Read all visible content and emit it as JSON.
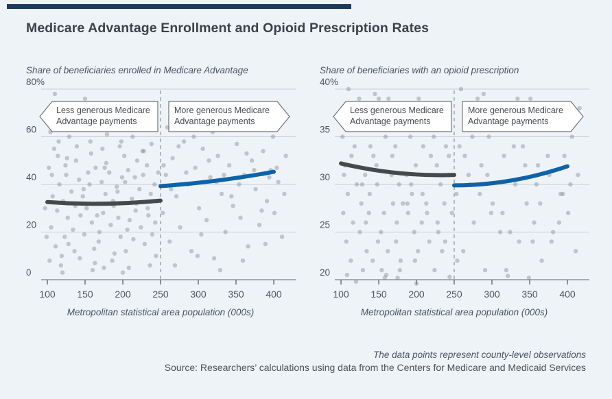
{
  "page": {
    "title": "Medicare Advantage Enrollment and Opioid Prescription Rates",
    "accent_bar_color": "#1c3a5e",
    "background_color": "#eef3f8",
    "footer_note": "The data points represent county-level observations",
    "footer_source": "Source: Researchers’ calculations using data from the Centers for Medicare and Medicaid Services"
  },
  "colors": {
    "dot": "#7e868c",
    "fit_below": "#46494c",
    "fit_above": "#0d63a9",
    "grid": "#c7cdd2",
    "axis": "#8d949a",
    "tick": "#6a7076",
    "dashed": "#97a0a7",
    "box_border": "#6e757b",
    "box_fill": "#ffffff"
  },
  "annotations": {
    "less": {
      "line1": "Less generous Medicare",
      "line2": "Advantage payments"
    },
    "more": {
      "line1": "More generous Medicare",
      "line2": "Advantage payments"
    }
  },
  "chart_data": [
    {
      "type": "scatter",
      "title": "Share of beneficiaries enrolled in Medicare Advantage",
      "xlabel": "Metropolitan statistical area population (000s)",
      "xlim": [
        85,
        430
      ],
      "ylim": [
        0,
        80
      ],
      "xticks": [
        100,
        150,
        200,
        250,
        300,
        350,
        400
      ],
      "ytick_values": [
        80,
        60,
        40,
        20,
        0
      ],
      "ytick_labels": [
        "80%",
        "60",
        "40",
        "20",
        "0"
      ],
      "threshold_x": 250,
      "grid": true,
      "fit_below": {
        "name": "less-generous-fit",
        "points": [
          [
            100,
            32.6
          ],
          [
            175,
            31.9
          ],
          [
            250,
            33.2
          ]
        ]
      },
      "fit_above": {
        "name": "more-generous-fit",
        "points": [
          [
            250,
            39.3
          ],
          [
            325,
            41.6
          ],
          [
            400,
            45.3
          ]
        ]
      },
      "points": [
        [
          103,
          8
        ],
        [
          105,
          22
        ],
        [
          107,
          35
        ],
        [
          102,
          47
        ],
        [
          109,
          55
        ],
        [
          111,
          14
        ],
        [
          113,
          29
        ],
        [
          104,
          62
        ],
        [
          116,
          40
        ],
        [
          118,
          6
        ],
        [
          108,
          70
        ],
        [
          121,
          33
        ],
        [
          123,
          18
        ],
        [
          125,
          44
        ],
        [
          114,
          52
        ],
        [
          127,
          26
        ],
        [
          129,
          60
        ],
        [
          119,
          10
        ],
        [
          132,
          37
        ],
        [
          134,
          21
        ],
        [
          124,
          48
        ],
        [
          137,
          31
        ],
        [
          139,
          56
        ],
        [
          128,
          15
        ],
        [
          142,
          42
        ],
        [
          144,
          27
        ],
        [
          133,
          65
        ],
        [
          147,
          35
        ],
        [
          149,
          19
        ],
        [
          138,
          50
        ],
        [
          152,
          30
        ],
        [
          154,
          45
        ],
        [
          143,
          9
        ],
        [
          157,
          58
        ],
        [
          159,
          24
        ],
        [
          148,
          38
        ],
        [
          162,
          13
        ],
        [
          164,
          47
        ],
        [
          153,
          68
        ],
        [
          167,
          32
        ],
        [
          169,
          20
        ],
        [
          158,
          53
        ],
        [
          172,
          41
        ],
        [
          174,
          28
        ],
        [
          163,
          7
        ],
        [
          177,
          36
        ],
        [
          179,
          61
        ],
        [
          168,
          16
        ],
        [
          182,
          45
        ],
        [
          184,
          23
        ],
        [
          173,
          55
        ],
        [
          187,
          33
        ],
        [
          189,
          11
        ],
        [
          178,
          49
        ],
        [
          192,
          39
        ],
        [
          194,
          26
        ],
        [
          183,
          64
        ],
        [
          197,
          18
        ],
        [
          199,
          43
        ],
        [
          188,
          31
        ],
        [
          202,
          52
        ],
        [
          204,
          12
        ],
        [
          193,
          37
        ],
        [
          207,
          46
        ],
        [
          209,
          25
        ],
        [
          198,
          58
        ],
        [
          212,
          34
        ],
        [
          214,
          17
        ],
        [
          203,
          41
        ],
        [
          217,
          29
        ],
        [
          219,
          50
        ],
        [
          208,
          5
        ],
        [
          222,
          38
        ],
        [
          224,
          22
        ],
        [
          213,
          60
        ],
        [
          227,
          44
        ],
        [
          229,
          15
        ],
        [
          218,
          32
        ],
        [
          232,
          48
        ],
        [
          234,
          27
        ],
        [
          223,
          70
        ],
        [
          237,
          36
        ],
        [
          239,
          19
        ],
        [
          228,
          54
        ],
        [
          242,
          40
        ],
        [
          244,
          10
        ],
        [
          233,
          30
        ],
        [
          247,
          45
        ],
        [
          238,
          57
        ],
        [
          243,
          24
        ],
        [
          110,
          78
        ],
        [
          150,
          76
        ],
        [
          120,
          3
        ],
        [
          160,
          4
        ],
        [
          200,
          3
        ],
        [
          145,
          73
        ],
        [
          175,
          5
        ],
        [
          106,
          44
        ],
        [
          115,
          58
        ],
        [
          126,
          51
        ],
        [
          136,
          12
        ],
        [
          146,
          63
        ],
        [
          156,
          40
        ],
        [
          166,
          27
        ],
        [
          176,
          47
        ],
        [
          186,
          8
        ],
        [
          196,
          56
        ],
        [
          206,
          21
        ],
        [
          216,
          43
        ],
        [
          226,
          54
        ],
        [
          236,
          6
        ],
        [
          246,
          33
        ],
        [
          97,
          30
        ],
        [
          99,
          18
        ],
        [
          253,
          28
        ],
        [
          257,
          44
        ],
        [
          262,
          16
        ],
        [
          266,
          51
        ],
        [
          271,
          35
        ],
        [
          276,
          22
        ],
        [
          281,
          58
        ],
        [
          286,
          40
        ],
        [
          291,
          12
        ],
        [
          296,
          47
        ],
        [
          301,
          30
        ],
        [
          306,
          55
        ],
        [
          311,
          25
        ],
        [
          316,
          43
        ],
        [
          321,
          9
        ],
        [
          326,
          52
        ],
        [
          331,
          36
        ],
        [
          336,
          20
        ],
        [
          341,
          48
        ],
        [
          346,
          31
        ],
        [
          351,
          57
        ],
        [
          356,
          26
        ],
        [
          361,
          44
        ],
        [
          366,
          14
        ],
        [
          371,
          50
        ],
        [
          376,
          38
        ],
        [
          381,
          23
        ],
        [
          386,
          54
        ],
        [
          391,
          33
        ],
        [
          396,
          46
        ],
        [
          401,
          28
        ],
        [
          406,
          41
        ],
        [
          411,
          18
        ],
        [
          416,
          52
        ],
        [
          259,
          64
        ],
        [
          289,
          70
        ],
        [
          319,
          62
        ],
        [
          349,
          68
        ],
        [
          379,
          72
        ],
        [
          399,
          60
        ],
        [
          269,
          6
        ],
        [
          299,
          10
        ],
        [
          329,
          4
        ],
        [
          359,
          8
        ],
        [
          389,
          15
        ],
        [
          264,
          38
        ],
        [
          284,
          45
        ],
        [
          304,
          19
        ],
        [
          324,
          41
        ],
        [
          344,
          35
        ],
        [
          364,
          53
        ],
        [
          384,
          29
        ],
        [
          404,
          47
        ],
        [
          254,
          48
        ],
        [
          274,
          56
        ],
        [
          294,
          60
        ],
        [
          314,
          50
        ],
        [
          334,
          44
        ],
        [
          354,
          40
        ],
        [
          374,
          46
        ],
        [
          394,
          43
        ],
        [
          414,
          36
        ]
      ]
    },
    {
      "type": "scatter",
      "title": "Share of beneficiaries with an opioid prescription",
      "xlabel": "Metropolitan statistical area population (000s)",
      "xlim": [
        85,
        430
      ],
      "ylim": [
        20,
        40
      ],
      "xticks": [
        100,
        150,
        200,
        250,
        300,
        350,
        400
      ],
      "ytick_values": [
        40,
        35,
        30,
        25,
        20
      ],
      "ytick_labels": [
        "40%",
        "35",
        "30",
        "25",
        "20"
      ],
      "threshold_x": 250,
      "grid": true,
      "fit_below": {
        "name": "less-generous-fit",
        "points": [
          [
            100,
            32.2
          ],
          [
            175,
            31.2
          ],
          [
            250,
            31.0
          ]
        ]
      },
      "fit_above": {
        "name": "more-generous-fit",
        "points": [
          [
            250,
            29.9
          ],
          [
            325,
            30.4
          ],
          [
            400,
            31.9
          ]
        ]
      },
      "points": [
        [
          103,
          27
        ],
        [
          105,
          32
        ],
        [
          107,
          24
        ],
        [
          102,
          35
        ],
        [
          109,
          29
        ],
        [
          111,
          38
        ],
        [
          113,
          22
        ],
        [
          104,
          31
        ],
        [
          116,
          26
        ],
        [
          118,
          34
        ],
        [
          108,
          20.5
        ],
        [
          121,
          30
        ],
        [
          123,
          37
        ],
        [
          125,
          25
        ],
        [
          114,
          33
        ],
        [
          127,
          28
        ],
        [
          129,
          21
        ],
        [
          119,
          36
        ],
        [
          132,
          31
        ],
        [
          134,
          23
        ],
        [
          124,
          39
        ],
        [
          137,
          27
        ],
        [
          139,
          34
        ],
        [
          128,
          30
        ],
        [
          142,
          22
        ],
        [
          144,
          36
        ],
        [
          133,
          26
        ],
        [
          147,
          32
        ],
        [
          149,
          24
        ],
        [
          138,
          29
        ],
        [
          152,
          38
        ],
        [
          154,
          21
        ],
        [
          143,
          33
        ],
        [
          157,
          27
        ],
        [
          159,
          35
        ],
        [
          148,
          30
        ],
        [
          162,
          23
        ],
        [
          164,
          37
        ],
        [
          153,
          25
        ],
        [
          167,
          31
        ],
        [
          169,
          28
        ],
        [
          158,
          20.2
        ],
        [
          172,
          34
        ],
        [
          174,
          26
        ],
        [
          163,
          39
        ],
        [
          177,
          30
        ],
        [
          179,
          22
        ],
        [
          168,
          33
        ],
        [
          182,
          28
        ],
        [
          184,
          36
        ],
        [
          173,
          24
        ],
        [
          187,
          31
        ],
        [
          189,
          27
        ],
        [
          178,
          21
        ],
        [
          192,
          35
        ],
        [
          194,
          29
        ],
        [
          183,
          38
        ],
        [
          197,
          25
        ],
        [
          199,
          32
        ],
        [
          188,
          28
        ],
        [
          202,
          23
        ],
        [
          204,
          36
        ],
        [
          193,
          30
        ],
        [
          207,
          26
        ],
        [
          209,
          34
        ],
        [
          198,
          22
        ],
        [
          212,
          31
        ],
        [
          214,
          27
        ],
        [
          203,
          39
        ],
        [
          217,
          24
        ],
        [
          219,
          33
        ],
        [
          208,
          29
        ],
        [
          222,
          36
        ],
        [
          224,
          21
        ],
        [
          213,
          28
        ],
        [
          227,
          32
        ],
        [
          229,
          25
        ],
        [
          218,
          37
        ],
        [
          232,
          30
        ],
        [
          234,
          23
        ],
        [
          223,
          35
        ],
        [
          237,
          28
        ],
        [
          239,
          34
        ],
        [
          228,
          26
        ],
        [
          242,
          31
        ],
        [
          244,
          20.3
        ],
        [
          233,
          38
        ],
        [
          247,
          27
        ],
        [
          238,
          24
        ],
        [
          243,
          33
        ],
        [
          110,
          40
        ],
        [
          150,
          39
        ],
        [
          120,
          19.8
        ],
        [
          160,
          20.5
        ],
        [
          200,
          19.6
        ],
        [
          145,
          39.5
        ],
        [
          175,
          20.2
        ],
        [
          253,
          29
        ],
        [
          257,
          34
        ],
        [
          262,
          23
        ],
        [
          266,
          37
        ],
        [
          271,
          30
        ],
        [
          276,
          26
        ],
        [
          281,
          39
        ],
        [
          286,
          32
        ],
        [
          291,
          21
        ],
        [
          296,
          35
        ],
        [
          301,
          28
        ],
        [
          306,
          38
        ],
        [
          311,
          25
        ],
        [
          316,
          33
        ],
        [
          321,
          20.4
        ],
        [
          326,
          36
        ],
        [
          331,
          30
        ],
        [
          336,
          24
        ],
        [
          341,
          34
        ],
        [
          346,
          28
        ],
        [
          351,
          39
        ],
        [
          356,
          26
        ],
        [
          361,
          32
        ],
        [
          366,
          22
        ],
        [
          371,
          36
        ],
        [
          376,
          31
        ],
        [
          381,
          25
        ],
        [
          386,
          37
        ],
        [
          391,
          29
        ],
        [
          396,
          33
        ],
        [
          401,
          27
        ],
        [
          406,
          35
        ],
        [
          411,
          23
        ],
        [
          416,
          38
        ],
        [
          259,
          40
        ],
        [
          289,
          39.5
        ],
        [
          319,
          21
        ],
        [
          349,
          20.2
        ],
        [
          379,
          24
        ],
        [
          399,
          37
        ],
        [
          269,
          31
        ],
        [
          299,
          27
        ],
        [
          329,
          34
        ],
        [
          359,
          30
        ],
        [
          389,
          26
        ],
        [
          264,
          33
        ],
        [
          284,
          29
        ],
        [
          304,
          36
        ],
        [
          324,
          25
        ],
        [
          344,
          32
        ],
        [
          364,
          28
        ],
        [
          384,
          38
        ],
        [
          404,
          30
        ],
        [
          254,
          22
        ],
        [
          274,
          35
        ],
        [
          294,
          31
        ],
        [
          314,
          27
        ],
        [
          334,
          39
        ],
        [
          354,
          24
        ],
        [
          374,
          33
        ],
        [
          394,
          29
        ],
        [
          414,
          31
        ]
      ]
    }
  ]
}
